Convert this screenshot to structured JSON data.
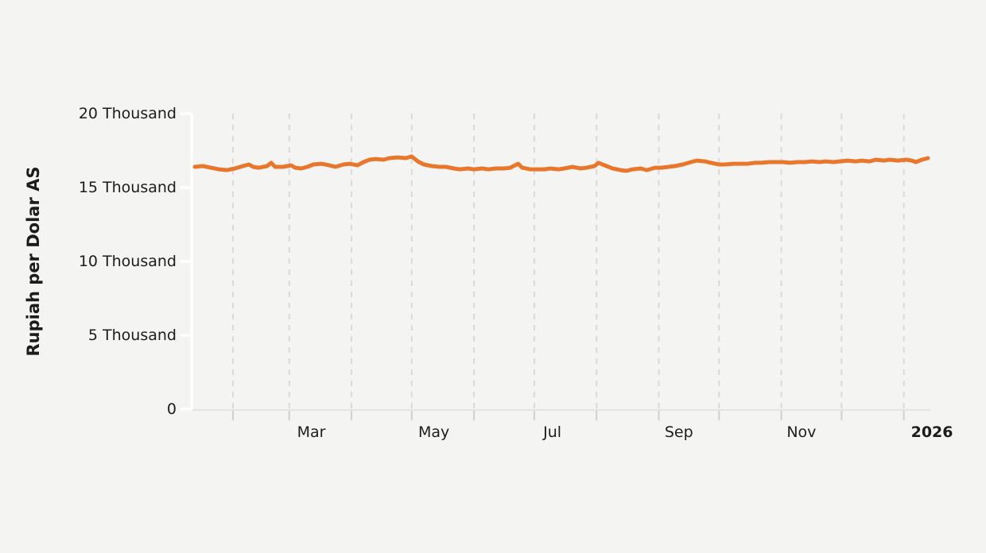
{
  "colors": {
    "background": "#f4f4f2",
    "line": "#E8772C",
    "gridline": "#d9d9d7",
    "x_axis_line": "#e3e3e1",
    "x_tick": "#d0d0ce",
    "y_axis_line": "#ffffff",
    "text": "#1c1c1c"
  },
  "chart_data": {
    "type": "line",
    "title": "",
    "ylabel": "Rupiah per Dolar AS",
    "xlabel": "",
    "ylim": [
      0,
      20000
    ],
    "grid": "vertical-dashed",
    "legend": "none",
    "y_ticks": [
      {
        "value": 0,
        "label": "0"
      },
      {
        "value": 5000,
        "label": "5 Thousand"
      },
      {
        "value": 10000,
        "label": "10 Thousand"
      },
      {
        "value": 15000,
        "label": "15 Thousand"
      },
      {
        "value": 20000,
        "label": "20 Thousand"
      }
    ],
    "x_axis": {
      "start_date": "2025-01-13",
      "end_date": "2026-01-13",
      "gridline_dates": [
        "2025-02-01",
        "2025-03-01",
        "2025-04-01",
        "2025-05-01",
        "2025-06-01",
        "2025-07-01",
        "2025-08-01",
        "2025-09-01",
        "2025-10-01",
        "2025-11-01",
        "2025-12-01",
        "2026-01-01"
      ],
      "tick_labels": [
        {
          "date": "2025-03-12",
          "text": "Mar",
          "bold": false
        },
        {
          "date": "2025-05-12",
          "text": "May",
          "bold": false
        },
        {
          "date": "2025-07-10",
          "text": "Jul",
          "bold": false
        },
        {
          "date": "2025-09-11",
          "text": "Sep",
          "bold": false
        },
        {
          "date": "2025-11-11",
          "text": "Nov",
          "bold": false
        },
        {
          "date": "2026-01-15",
          "text": "2026",
          "bold": true
        }
      ]
    },
    "series": [
      {
        "name": "Rupiah per Dolar AS",
        "color": "#E8772C",
        "dates": [
          "2025-01-13",
          "2025-01-17",
          "2025-01-21",
          "2025-01-25",
          "2025-01-29",
          "2025-02-02",
          "2025-02-06",
          "2025-02-09",
          "2025-02-11",
          "2025-02-14",
          "2025-02-18",
          "2025-02-20",
          "2025-02-22",
          "2025-02-26",
          "2025-03-02",
          "2025-03-04",
          "2025-03-07",
          "2025-03-10",
          "2025-03-13",
          "2025-03-17",
          "2025-03-21",
          "2025-03-24",
          "2025-03-28",
          "2025-03-31",
          "2025-04-04",
          "2025-04-07",
          "2025-04-10",
          "2025-04-13",
          "2025-04-17",
          "2025-04-20",
          "2025-04-24",
          "2025-04-28",
          "2025-05-01",
          "2025-05-04",
          "2025-05-07",
          "2025-05-11",
          "2025-05-15",
          "2025-05-18",
          "2025-05-22",
          "2025-05-25",
          "2025-05-29",
          "2025-06-01",
          "2025-06-05",
          "2025-06-08",
          "2025-06-12",
          "2025-06-16",
          "2025-06-19",
          "2025-06-23",
          "2025-06-25",
          "2025-06-29",
          "2025-07-02",
          "2025-07-06",
          "2025-07-09",
          "2025-07-13",
          "2025-07-16",
          "2025-07-20",
          "2025-07-24",
          "2025-07-27",
          "2025-07-31",
          "2025-08-02",
          "2025-08-06",
          "2025-08-09",
          "2025-08-13",
          "2025-08-16",
          "2025-08-19",
          "2025-08-23",
          "2025-08-26",
          "2025-08-30",
          "2025-09-02",
          "2025-09-06",
          "2025-09-09",
          "2025-09-13",
          "2025-09-17",
          "2025-09-20",
          "2025-09-24",
          "2025-09-27",
          "2025-10-01",
          "2025-10-04",
          "2025-10-08",
          "2025-10-12",
          "2025-10-15",
          "2025-10-19",
          "2025-10-22",
          "2025-10-26",
          "2025-10-29",
          "2025-11-02",
          "2025-11-05",
          "2025-11-09",
          "2025-11-13",
          "2025-11-16",
          "2025-11-20",
          "2025-11-23",
          "2025-11-27",
          "2025-11-30",
          "2025-12-04",
          "2025-12-08",
          "2025-12-11",
          "2025-12-15",
          "2025-12-18",
          "2025-12-22",
          "2025-12-25",
          "2025-12-29",
          "2026-01-02",
          "2026-01-05",
          "2026-01-07",
          "2026-01-10",
          "2026-01-13"
        ],
        "values": [
          16400,
          16450,
          16340,
          16230,
          16180,
          16290,
          16450,
          16560,
          16400,
          16340,
          16450,
          16670,
          16400,
          16400,
          16500,
          16340,
          16290,
          16400,
          16560,
          16610,
          16500,
          16400,
          16560,
          16610,
          16500,
          16720,
          16880,
          16930,
          16880,
          16990,
          17040,
          16990,
          17100,
          16770,
          16560,
          16450,
          16400,
          16400,
          16290,
          16230,
          16290,
          16230,
          16290,
          16230,
          16290,
          16290,
          16340,
          16610,
          16340,
          16230,
          16230,
          16230,
          16290,
          16230,
          16290,
          16400,
          16290,
          16340,
          16450,
          16670,
          16450,
          16290,
          16180,
          16130,
          16230,
          16290,
          16180,
          16340,
          16340,
          16400,
          16450,
          16560,
          16720,
          16820,
          16770,
          16670,
          16560,
          16560,
          16610,
          16610,
          16610,
          16670,
          16670,
          16720,
          16720,
          16720,
          16670,
          16720,
          16720,
          16770,
          16720,
          16770,
          16720,
          16770,
          16820,
          16770,
          16820,
          16770,
          16880,
          16820,
          16880,
          16820,
          16880,
          16820,
          16720,
          16880,
          16990
        ]
      }
    ]
  }
}
